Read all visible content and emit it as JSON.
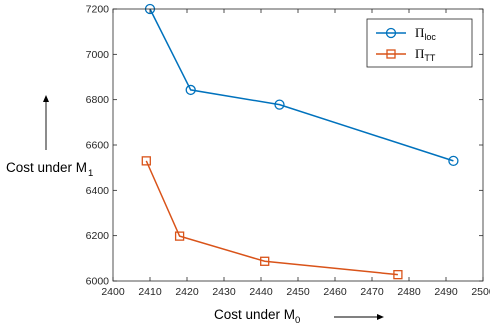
{
  "chart_data": {
    "type": "line",
    "x_ticks": [
      2400,
      2410,
      2420,
      2430,
      2440,
      2450,
      2460,
      2470,
      2480,
      2490,
      2500
    ],
    "x_tick_labels": [
      "2400",
      "2410",
      "2420",
      "2430",
      "2440",
      "2450",
      "2460",
      "2470",
      "2480",
      "2490",
      "2500"
    ],
    "y_ticks": [
      6000,
      6200,
      6400,
      6600,
      6800,
      7000,
      7200
    ],
    "y_tick_labels": [
      "6000",
      "6200",
      "6400",
      "6600",
      "6800",
      "7000",
      "7200"
    ],
    "xlim": [
      2400,
      2500
    ],
    "ylim": [
      6000,
      7200
    ],
    "xlabel": {
      "main": "Cost under M",
      "sub": "0"
    },
    "ylabel": {
      "main": "Cost under M",
      "sub": "1"
    },
    "grid": false,
    "legend_position": "top-right",
    "series": [
      {
        "name": "Π_loc",
        "legend_main": "Π",
        "legend_sub": "loc",
        "color": "#0072BD",
        "marker": "circle",
        "x": [
          2410,
          2421,
          2445,
          2492
        ],
        "y": [
          7200,
          6843,
          6778,
          6530
        ]
      },
      {
        "name": "Π_TT",
        "legend_main": "Π",
        "legend_sub": "TT",
        "color": "#D95319",
        "marker": "square",
        "x": [
          2409,
          2418,
          2441,
          2477
        ],
        "y": [
          6530,
          6198,
          6087,
          6028
        ]
      }
    ]
  }
}
